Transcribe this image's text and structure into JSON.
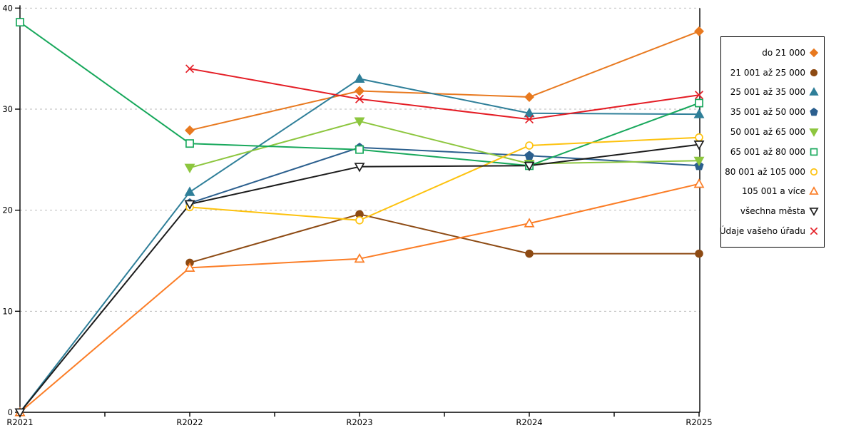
{
  "chart_data": {
    "type": "line",
    "title": "",
    "xlabel": "",
    "ylabel": "",
    "categories": [
      "R2021",
      "R2022",
      "R2023",
      "R2024",
      "R2025"
    ],
    "ylim": [
      0,
      40
    ],
    "yticks": [
      0,
      10,
      20,
      30,
      40
    ],
    "grid": "horizontal-dashed",
    "grid_color": "#bbbbbb",
    "axis_color": "#000000",
    "legend_position": "right",
    "series": [
      {
        "name": "do 21 000",
        "color": "#e8791f",
        "marker": "diamond",
        "marker_fill": "filled",
        "values": [
          null,
          27.9,
          31.8,
          31.2,
          37.7
        ]
      },
      {
        "name": "21 001 až 25 000",
        "color": "#8d4a13",
        "marker": "circle",
        "marker_fill": "filled",
        "values": [
          null,
          14.8,
          19.6,
          15.7,
          15.7
        ]
      },
      {
        "name": "25 001 až 35 000",
        "color": "#2f7f99",
        "marker": "triangle-up",
        "marker_fill": "filled",
        "values": [
          0,
          21.8,
          33.0,
          29.6,
          29.5
        ]
      },
      {
        "name": "35 001 až 50 000",
        "color": "#2b5f8e",
        "marker": "pentagon",
        "marker_fill": "filled",
        "values": [
          null,
          20.7,
          26.2,
          25.4,
          24.4
        ]
      },
      {
        "name": "50 001 až 65 000",
        "color": "#8dc63f",
        "marker": "triangle-down",
        "marker_fill": "filled",
        "values": [
          null,
          24.2,
          28.8,
          24.6,
          24.9
        ]
      },
      {
        "name": "65 001 až 80 000",
        "color": "#18a85c",
        "marker": "square",
        "marker_fill": "open",
        "values": [
          38.6,
          26.6,
          26.0,
          24.4,
          30.6
        ]
      },
      {
        "name": "80 001 až 105 000",
        "color": "#fdc20e",
        "marker": "circle",
        "marker_fill": "open",
        "values": [
          null,
          20.3,
          19.0,
          26.4,
          27.2
        ]
      },
      {
        "name": "105 001 a více",
        "color": "#fb7d26",
        "marker": "triangle-up",
        "marker_fill": "open",
        "values": [
          0,
          14.3,
          15.2,
          18.7,
          22.6
        ]
      },
      {
        "name": "všechna města",
        "color": "#1b1b1b",
        "marker": "triangle-down",
        "marker_fill": "open",
        "values": [
          0,
          20.6,
          24.3,
          24.4,
          26.5
        ]
      },
      {
        "name": "Údaje vašeho úřadu",
        "color": "#e41d25",
        "marker": "x",
        "marker_fill": "open",
        "values": [
          null,
          34.0,
          31.0,
          29.0,
          31.4
        ]
      }
    ]
  }
}
